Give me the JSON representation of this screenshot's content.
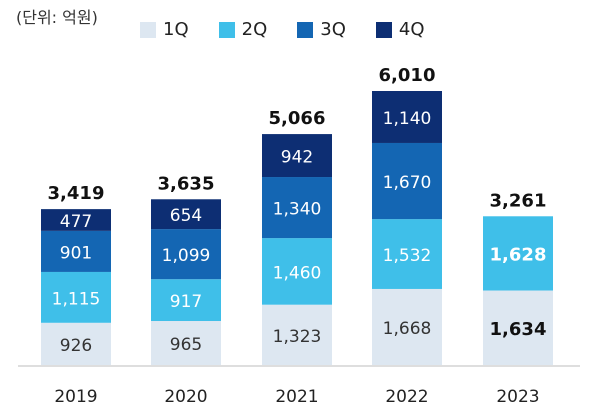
{
  "chart_data": {
    "type": "bar",
    "stacked": true,
    "unit_label": "(단위: 억원)",
    "categories": [
      "2019",
      "2020",
      "2021",
      "2022",
      "2023"
    ],
    "series": [
      {
        "name": "1Q",
        "color": "#dde7f1",
        "values": [
          926,
          965,
          1323,
          1668,
          1634
        ],
        "labels": [
          "926",
          "965",
          "1,323",
          "1,668",
          "1,634"
        ]
      },
      {
        "name": "2Q",
        "color": "#3fbfe9",
        "values": [
          1115,
          917,
          1460,
          1532,
          1628
        ],
        "labels": [
          "1,115",
          "917",
          "1,460",
          "1,532",
          "1,628"
        ]
      },
      {
        "name": "3Q",
        "color": "#1466b3",
        "values": [
          901,
          1099,
          1340,
          1670,
          null
        ],
        "labels": [
          "901",
          "1,099",
          "1,340",
          "1,670",
          ""
        ]
      },
      {
        "name": "4Q",
        "color": "#0d2e73",
        "values": [
          477,
          654,
          942,
          1140,
          null
        ],
        "labels": [
          "477",
          "654",
          "942",
          "1,140",
          ""
        ]
      }
    ],
    "totals": [
      3419,
      3635,
      5066,
      6010,
      3261
    ],
    "total_labels": [
      "3,419",
      "3,635",
      "5,066",
      "6,010",
      "3,261"
    ],
    "legend_position": "top",
    "grid": false
  }
}
